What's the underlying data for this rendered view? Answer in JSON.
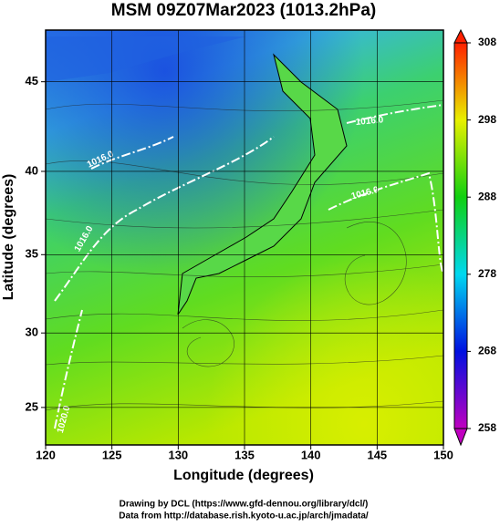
{
  "map": {
    "title": "MSM 09Z07Mar2023 (1013.2hPa)",
    "x_label": "Longitude (degrees)",
    "y_label": "Latitude  (degrees)",
    "xlim": [
      120,
      150
    ],
    "xticks": [
      120,
      125,
      130,
      135,
      140,
      145,
      150
    ],
    "ylim": [
      22.4,
      47.7
    ],
    "yticks": [
      25,
      30,
      35,
      40,
      45
    ],
    "projection": "mercator",
    "grid": true,
    "colorbar": {
      "lim": [
        258,
        308
      ],
      "ticks": [
        258,
        268,
        278,
        288,
        298,
        308
      ],
      "colors": [
        "#c000c0",
        "#0010e0",
        "#00d8f0",
        "#10d010",
        "#e8f000",
        "#ff2000"
      ]
    },
    "contour_labels": [
      "1016.0",
      "1016.0",
      "1020.0",
      "1016.0",
      "1016.0"
    ],
    "footer": [
      "Drawing by DCL (https://www.gfd-dennou.org/library/dcl/)",
      "Data from http://database.rish.kyoto-u.ac.jp/arch/jmadata/"
    ]
  }
}
